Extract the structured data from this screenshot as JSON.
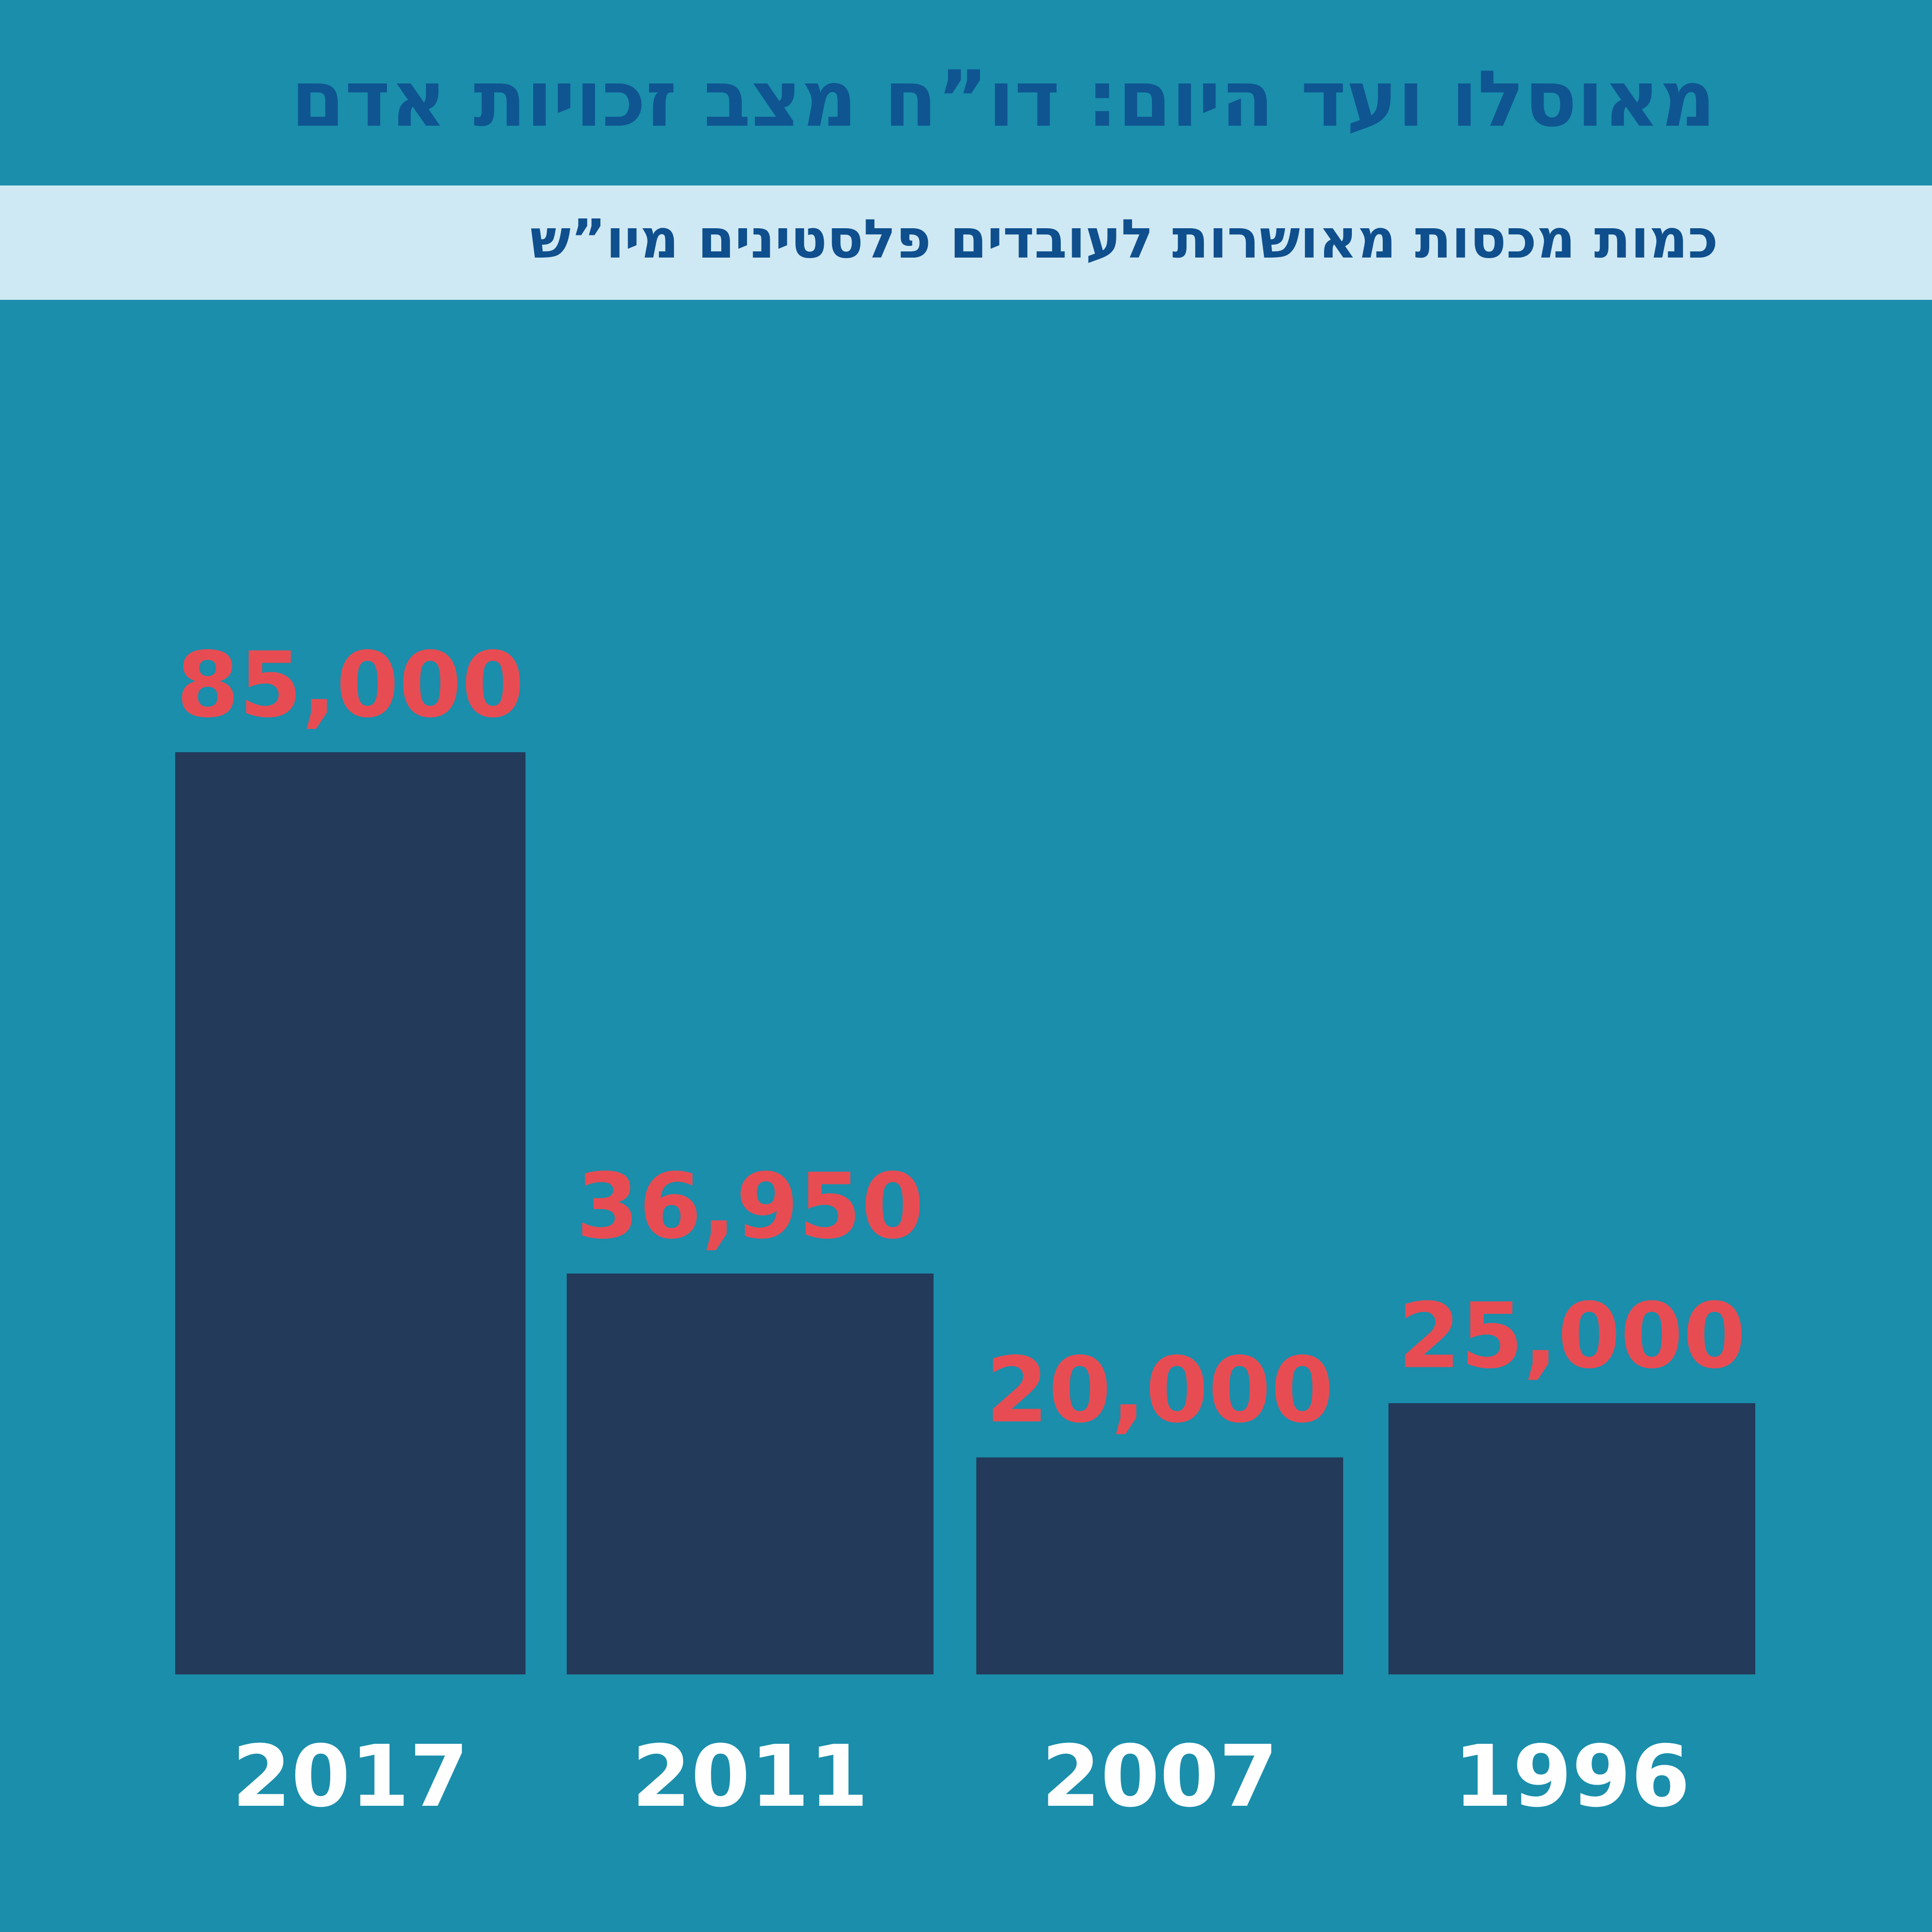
{
  "header": {
    "title": "מאוסלו ועד היום: דו”ח מצב זכויות אדם",
    "subtitle": "כמות מכסות מאושרות לעובדים פלסטינים מיו”ש"
  },
  "colors": {
    "background": "#1a8eab",
    "title_text": "#0f5591",
    "subtitle_band": "#cfe9f4",
    "subtitle_text": "#0f4f8d",
    "bar": "#243a5b",
    "value_label": "#e84c53",
    "year_label": "#ffffff"
  },
  "chart_data": {
    "type": "bar",
    "categories": [
      "2017",
      "2011",
      "2007",
      "1996"
    ],
    "values": [
      85000,
      36950,
      20000,
      25000
    ],
    "value_labels": [
      "85,000",
      "36,950",
      "20,000",
      "25,000"
    ],
    "title": "כמות מכסות מאושרות לעובדים פלסטינים מיו”ש",
    "xlabel": "",
    "ylabel": "",
    "ylim": [
      0,
      85000
    ],
    "grid": false,
    "legend": "none"
  }
}
